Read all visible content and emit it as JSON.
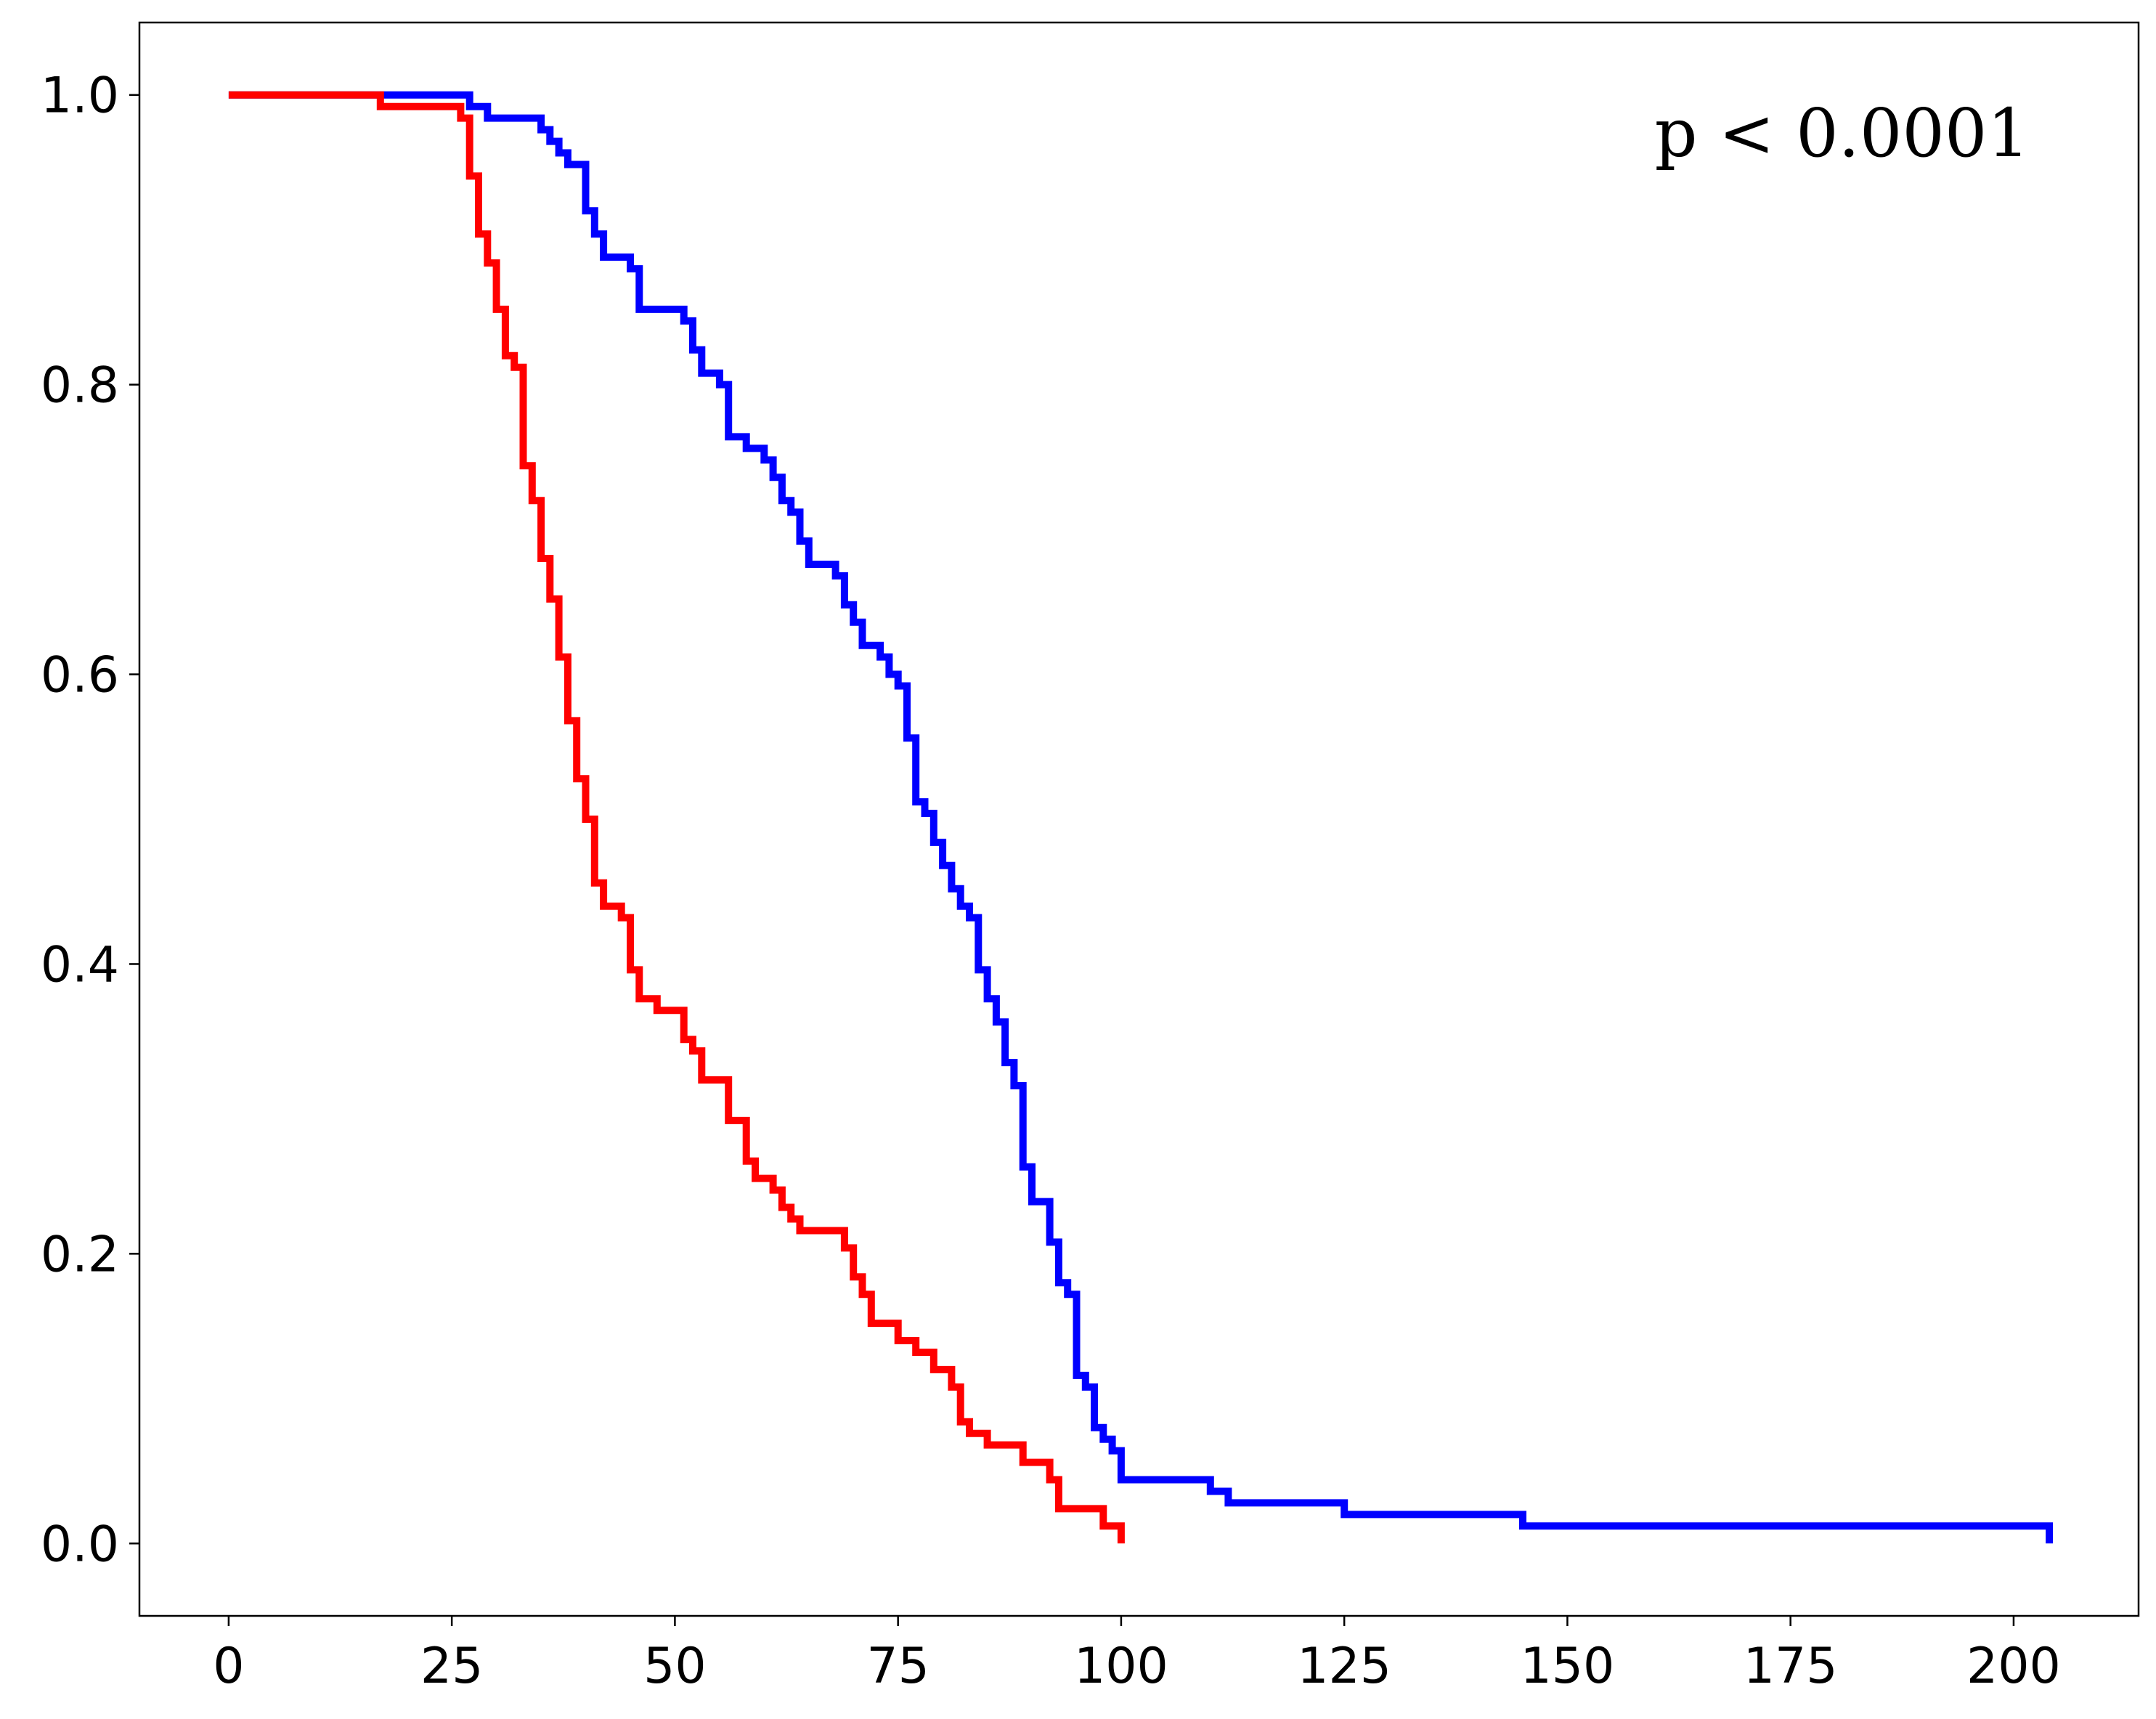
{
  "chart_data": {
    "type": "line",
    "title": "",
    "xlabel": "",
    "ylabel": "",
    "xlim": [
      -10,
      214
    ],
    "ylim": [
      -0.05,
      1.05
    ],
    "xticks": [
      0,
      25,
      50,
      75,
      100,
      125,
      150,
      175,
      200
    ],
    "yticks": [
      0.0,
      0.2,
      0.4,
      0.6,
      0.8,
      1.0
    ],
    "xtick_labels": [
      "0",
      "25",
      "50",
      "75",
      "100",
      "125",
      "150",
      "175",
      "200"
    ],
    "ytick_labels": [
      "0.0",
      "0.2",
      "0.4",
      "0.6",
      "0.8",
      "1.0"
    ],
    "grid": false,
    "legend": "none",
    "annotation": "p < 0.0001",
    "series": [
      {
        "color": "#0000ff",
        "step": true,
        "points": [
          [
            0,
            1.0
          ],
          [
            27,
            0.992
          ],
          [
            29,
            0.984
          ],
          [
            35,
            0.976
          ],
          [
            36,
            0.968
          ],
          [
            37,
            0.96
          ],
          [
            38,
            0.952
          ],
          [
            40,
            0.92
          ],
          [
            41,
            0.904
          ],
          [
            42,
            0.888
          ],
          [
            45,
            0.88
          ],
          [
            46,
            0.852
          ],
          [
            51,
            0.844
          ],
          [
            52,
            0.824
          ],
          [
            53,
            0.808
          ],
          [
            55,
            0.8
          ],
          [
            56,
            0.764
          ],
          [
            58,
            0.756
          ],
          [
            60,
            0.748
          ],
          [
            61,
            0.736
          ],
          [
            62,
            0.72
          ],
          [
            63,
            0.712
          ],
          [
            64,
            0.692
          ],
          [
            65,
            0.676
          ],
          [
            68,
            0.668
          ],
          [
            69,
            0.648
          ],
          [
            70,
            0.636
          ],
          [
            71,
            0.62
          ],
          [
            73,
            0.612
          ],
          [
            74,
            0.6
          ],
          [
            75,
            0.592
          ],
          [
            76,
            0.556
          ],
          [
            77,
            0.512
          ],
          [
            78,
            0.504
          ],
          [
            79,
            0.484
          ],
          [
            80,
            0.468
          ],
          [
            81,
            0.452
          ],
          [
            82,
            0.44
          ],
          [
            83,
            0.432
          ],
          [
            84,
            0.396
          ],
          [
            85,
            0.376
          ],
          [
            86,
            0.36
          ],
          [
            87,
            0.332
          ],
          [
            88,
            0.316
          ],
          [
            89,
            0.26
          ],
          [
            90,
            0.236
          ],
          [
            92,
            0.208
          ],
          [
            93,
            0.18
          ],
          [
            94,
            0.172
          ],
          [
            95,
            0.116
          ],
          [
            96,
            0.108
          ],
          [
            97,
            0.08
          ],
          [
            98,
            0.072
          ],
          [
            99,
            0.064
          ],
          [
            100,
            0.044
          ],
          [
            110,
            0.036
          ],
          [
            112,
            0.028
          ],
          [
            125,
            0.02
          ],
          [
            145,
            0.012
          ],
          [
            204,
            0.004
          ]
        ],
        "end": [
          204,
          0.0
        ]
      },
      {
        "color": "#ff0000",
        "step": true,
        "points": [
          [
            0,
            1.0
          ],
          [
            17,
            0.992
          ],
          [
            26,
            0.984
          ],
          [
            27,
            0.944
          ],
          [
            28,
            0.904
          ],
          [
            29,
            0.884
          ],
          [
            30,
            0.852
          ],
          [
            31,
            0.82
          ],
          [
            32,
            0.812
          ],
          [
            33,
            0.744
          ],
          [
            34,
            0.72
          ],
          [
            35,
            0.68
          ],
          [
            36,
            0.652
          ],
          [
            37,
            0.612
          ],
          [
            38,
            0.568
          ],
          [
            39,
            0.528
          ],
          [
            40,
            0.5
          ],
          [
            41,
            0.456
          ],
          [
            42,
            0.44
          ],
          [
            44,
            0.432
          ],
          [
            45,
            0.396
          ],
          [
            46,
            0.376
          ],
          [
            48,
            0.368
          ],
          [
            51,
            0.348
          ],
          [
            52,
            0.34
          ],
          [
            53,
            0.32
          ],
          [
            56,
            0.292
          ],
          [
            58,
            0.264
          ],
          [
            59,
            0.252
          ],
          [
            61,
            0.244
          ],
          [
            62,
            0.232
          ],
          [
            63,
            0.224
          ],
          [
            64,
            0.216
          ],
          [
            69,
            0.204
          ],
          [
            70,
            0.184
          ],
          [
            71,
            0.172
          ],
          [
            72,
            0.152
          ],
          [
            75,
            0.14
          ],
          [
            77,
            0.132
          ],
          [
            79,
            0.12
          ],
          [
            81,
            0.108
          ],
          [
            82,
            0.084
          ],
          [
            83,
            0.076
          ],
          [
            85,
            0.068
          ],
          [
            89,
            0.056
          ],
          [
            92,
            0.044
          ],
          [
            93,
            0.024
          ],
          [
            98,
            0.012
          ]
        ],
        "end": [
          100,
          0.0
        ]
      }
    ]
  }
}
